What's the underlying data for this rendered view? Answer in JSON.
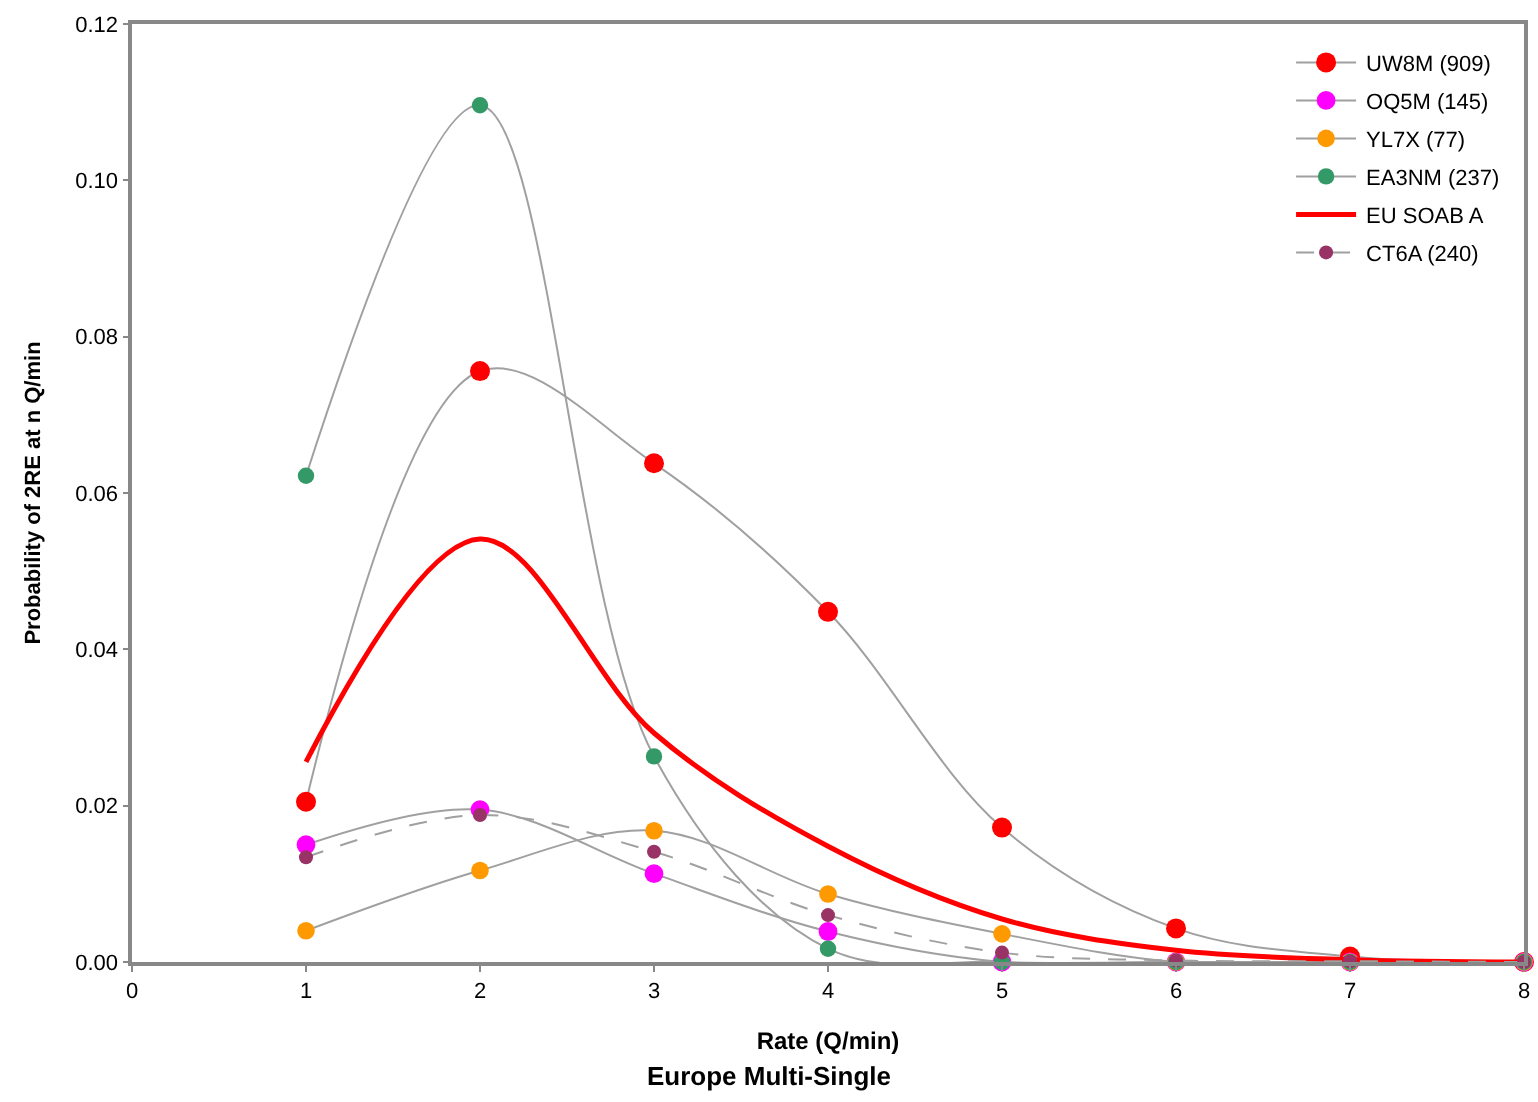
{
  "chart_data": {
    "type": "line",
    "title": "Europe Multi-Single",
    "xlabel": "Rate (Q/min)",
    "ylabel": "Probability of 2RE at n Q/min",
    "x": [
      1,
      2,
      3,
      4,
      5,
      6,
      7,
      8
    ],
    "series": [
      {
        "name": "UW8M (909)",
        "color": "#ff0000",
        "marker": "circle",
        "line_style": "solid",
        "values": [
          0.0205,
          0.0756,
          0.0638,
          0.0448,
          0.0172,
          0.0043,
          0.0007,
          0.0
        ]
      },
      {
        "name": "OQ5M (145)",
        "color": "#ff00ff",
        "marker": "circle",
        "line_style": "solid",
        "values": [
          0.015,
          0.0195,
          0.0113,
          0.0039,
          0.0,
          0.0,
          0.0,
          0.0
        ]
      },
      {
        "name": "YL7X (77)",
        "color": "#ff9900",
        "marker": "circle",
        "line_style": "solid",
        "values": [
          0.004,
          0.0117,
          0.0168,
          0.0087,
          0.0036,
          0.0,
          0.0,
          0.0
        ]
      },
      {
        "name": "EA3NM (237)",
        "color": "#339966",
        "marker": "circle",
        "line_style": "solid",
        "values": [
          0.0622,
          0.1096,
          0.0263,
          0.0017,
          0.0,
          0.0,
          0.0,
          0.0
        ]
      },
      {
        "name": "EU SOAB A",
        "color": "#ff0000",
        "marker": "none",
        "line_style": "solid",
        "values": [
          0.0256,
          0.0541,
          0.0293,
          0.0148,
          0.0055,
          0.0015,
          0.0003,
          0.0
        ]
      },
      {
        "name": "CT6A (240)",
        "color": "#993366",
        "marker": "circle",
        "line_style": "dashed",
        "values": [
          0.0134,
          0.0188,
          0.0141,
          0.006,
          0.0012,
          0.0002,
          0.0001,
          0.0
        ]
      }
    ],
    "xlim": [
      0,
      8
    ],
    "xticks": [
      0,
      1,
      2,
      3,
      4,
      5,
      6,
      7,
      8
    ],
    "ylim": [
      0,
      0.12
    ],
    "yticks": [
      {
        "value": 0,
        "label": "0.00"
      },
      {
        "value": 0.02,
        "label": "0.02"
      },
      {
        "value": 0.04,
        "label": "0.04"
      },
      {
        "value": 0.06,
        "label": "0.06"
      },
      {
        "value": 0.08,
        "label": "0.08"
      },
      {
        "value": 0.1,
        "label": "0.10"
      },
      {
        "value": 0.12,
        "label": "0.12"
      }
    ],
    "legend": "top right"
  }
}
